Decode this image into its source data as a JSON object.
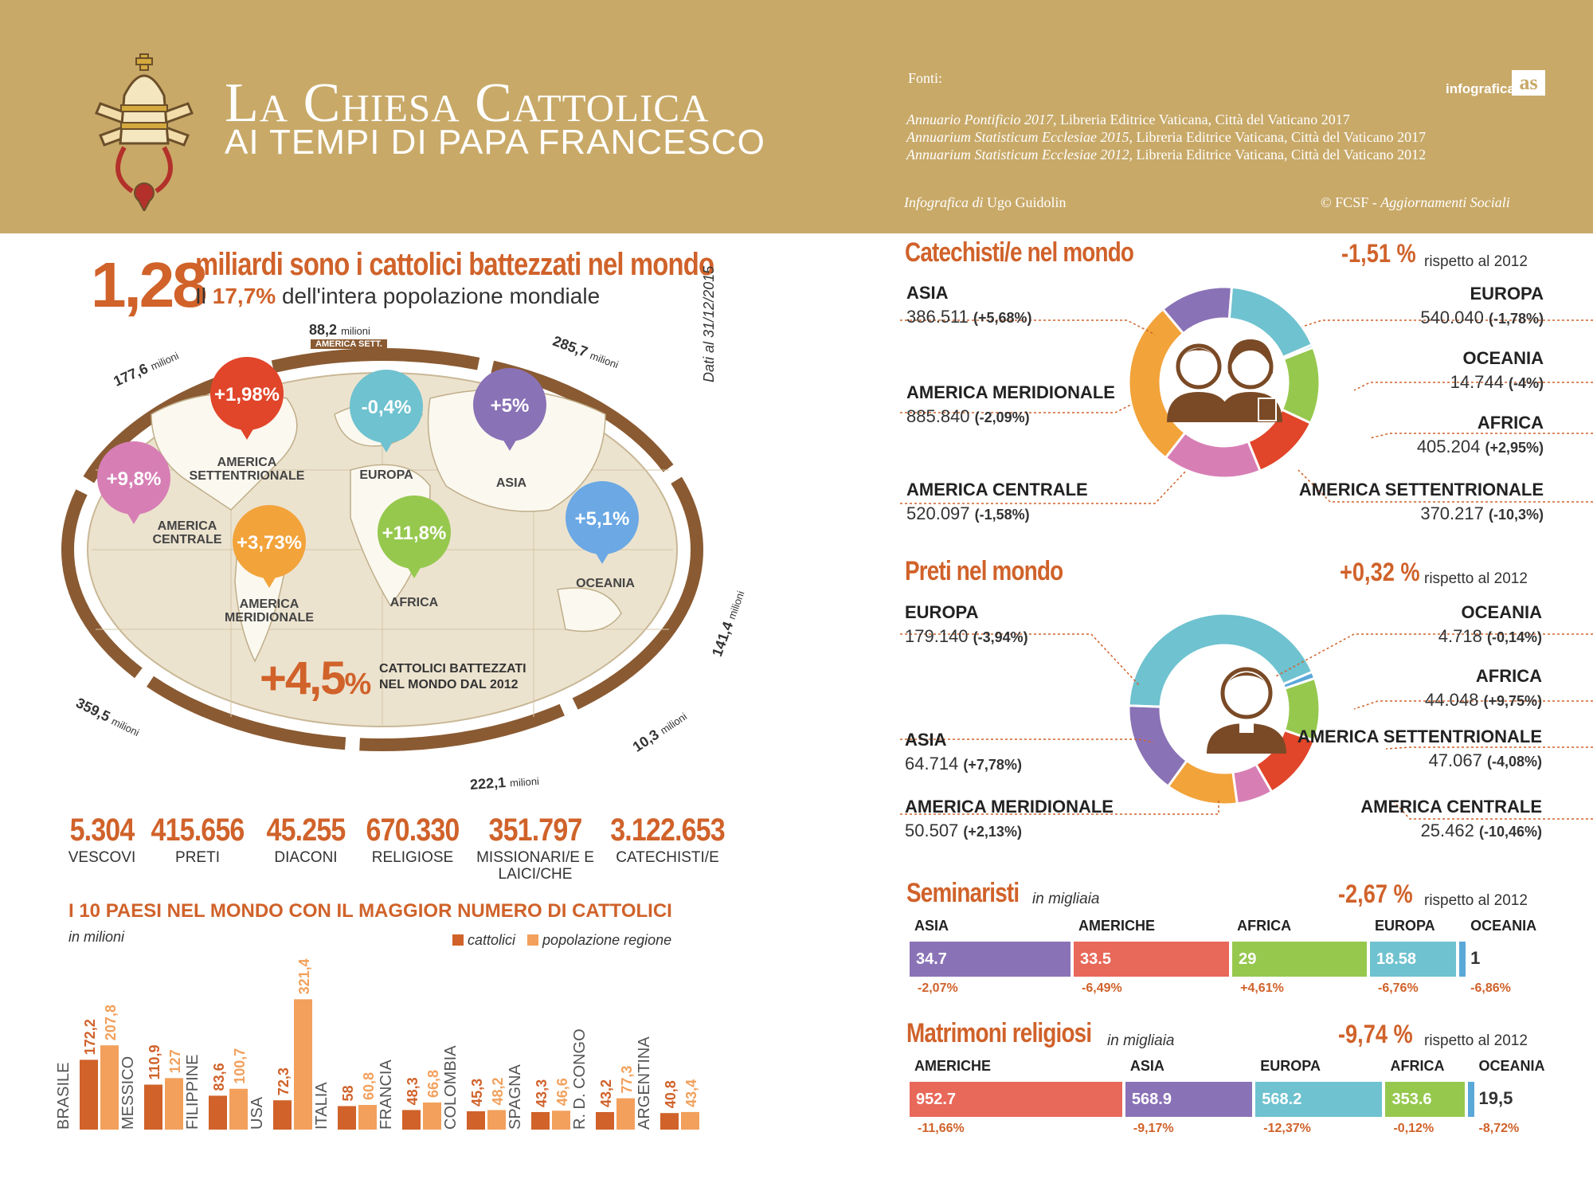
{
  "header": {
    "title_line1": "La Chiesa Cattolica",
    "title_line2": "AI TEMPI DI PAPA FRANCESCO",
    "fonti_label": "Fonti:",
    "sources": [
      {
        "title": "Annuario Pontificio 2017",
        "rest": ", Libreria Editrice Vaticana, Città del Vaticano 2017"
      },
      {
        "title": "Annuarium Statisticum Ecclesiae 2015",
        "rest": ", Libreria Editrice Vaticana, Città del Vaticano 2017"
      },
      {
        "title": "Annuarium Statisticum Ecclesiae 2012",
        "rest": ", Libreria Editrice Vaticana, Città del Vaticano 2012"
      }
    ],
    "infografica_di": "Infografica di",
    "author": "Ugo Guidolin",
    "copyright_prefix": "© FCSF - ",
    "copyright_pub": "Aggiornamenti Sociali",
    "brand_text": "infografica",
    "brand_logo": "as"
  },
  "intro": {
    "big_number": "1,28",
    "line1": "miliardi sono i cattolici battezzati nel mondo",
    "line2_prefix": "Il",
    "line2_pct": "17,7%",
    "line2_suffix": "dell'intera popolazione mondiale",
    "date_note": "Dati al 31/12/2015"
  },
  "map": {
    "ring_unit": "milioni",
    "ring_labels": [
      {
        "region": "AMERICA SETT.",
        "value": "88,2"
      },
      {
        "region": "AMERICA CENTRALE",
        "value": "177,6"
      },
      {
        "region": "EUROPA",
        "value": "285,7"
      },
      {
        "region": "ASIA",
        "value": "141,4"
      },
      {
        "region": "OCEANIA",
        "value": "10,3"
      },
      {
        "region": "AFRICA",
        "value": "222,1"
      },
      {
        "region": "AMERICA MERIDIONALE",
        "value": "359,5"
      }
    ],
    "bubbles": [
      {
        "pct": "+1,98%",
        "label": "AMERICA SETTENTRIONALE",
        "color": "#e1452a"
      },
      {
        "pct": "-0,4%",
        "label": "EUROPA",
        "color": "#6fc2cf"
      },
      {
        "pct": "+5%",
        "label": "ASIA",
        "color": "#8a72b6"
      },
      {
        "pct": "+9,8%",
        "label": "AMERICA CENTRALE",
        "color": "#d77fb5"
      },
      {
        "pct": "+3,73%",
        "label": "AMERICA MERIDIONALE",
        "color": "#f2a33a"
      },
      {
        "pct": "+11,8%",
        "label": "AFRICA",
        "color": "#96c84e"
      },
      {
        "pct": "+5,1%",
        "label": "OCEANIA",
        "color": "#6ba8e4"
      }
    ],
    "growth_pct": "+4,5",
    "growth_sign": "%",
    "growth_label": "CATTOLICI BATTEZZATI NEL MONDO DAL 2012"
  },
  "stats": [
    {
      "value": "5.304",
      "label": "VESCOVI"
    },
    {
      "value": "415.656",
      "label": "PRETI"
    },
    {
      "value": "45.255",
      "label": "DIACONI"
    },
    {
      "value": "670.330",
      "label": "RELIGIOSE"
    },
    {
      "value": "351.797",
      "label": "MISSIONARI/E E LAICI/CHE"
    },
    {
      "value": "3.122.653",
      "label": "CATECHISTI/E"
    }
  ],
  "top10": {
    "title": "I 10 PAESI NEL MONDO CON IL MAGGIOR NUMERO DI CATTOLICI",
    "unit": "in milioni",
    "legend_cattolici": "cattolici",
    "legend_popolazione": "popolazione regione"
  },
  "catechisti": {
    "title": "Catechisti/e nel mondo",
    "pct": "-1,51 %",
    "rispetto": "rispetto al 2012"
  },
  "preti": {
    "title": "Preti nel mondo",
    "pct": "+0,32 %",
    "rispetto": "rispetto al 2012"
  },
  "seminaristi": {
    "title": "Seminaristi",
    "unit": "in migliaia",
    "pct": "-2,67 %",
    "rispetto": "rispetto al 2012"
  },
  "matrimoni": {
    "title": "Matrimoni religiosi",
    "unit": "in migliaia",
    "pct": "-9,74 %",
    "rispetto": "rispetto al 2012"
  },
  "chart_data": [
    {
      "type": "bar",
      "title": "I 10 PAESI NEL MONDO CON IL MAGGIOR NUMERO DI CATTOLICI",
      "ylabel": "in milioni",
      "categories": [
        "BRASILE",
        "MESSICO",
        "FILIPPINE",
        "USA",
        "ITALIA",
        "FRANCIA",
        "COLOMBIA",
        "SPAGNA",
        "R. D. CONGO",
        "ARGENTINA"
      ],
      "series": [
        {
          "name": "cattolici",
          "values": [
            172.2,
            110.9,
            83.6,
            72.3,
            58,
            48.3,
            45.3,
            43.3,
            43.2,
            40.8
          ],
          "labels": [
            "172,2",
            "110,9",
            "83,6",
            "72,3",
            "58",
            "48,3",
            "45,3",
            "43,3",
            "43,2",
            "40,8"
          ],
          "color": "#d0622a"
        },
        {
          "name": "popolazione regione",
          "values": [
            207.8,
            127,
            100.7,
            321.4,
            60.8,
            66.8,
            48.2,
            46.6,
            77.3,
            43.4
          ],
          "labels": [
            "207,8",
            "127",
            "100,7",
            "321,4",
            "60,8",
            "66,8",
            "48,2",
            "46,6",
            "77,3",
            "43,4"
          ],
          "color": "#f2a05c"
        }
      ],
      "ylim": [
        0,
        330
      ]
    },
    {
      "type": "pie",
      "title": "Catechisti/e nel mondo",
      "slices": [
        {
          "name": "ASIA",
          "value": 386511,
          "label": "386.511",
          "change": "(+5,68%)",
          "color": "#8a72b6"
        },
        {
          "name": "EUROPA",
          "value": 540040,
          "label": "540.040",
          "change": "(-1,78%)",
          "color": "#6fc2cf"
        },
        {
          "name": "OCEANIA",
          "value": 14744,
          "label": "14.744",
          "change": "(-4%)",
          "color": "#5aa8d8"
        },
        {
          "name": "AFRICA",
          "value": 405204,
          "label": "405.204",
          "change": "(+2,95%)",
          "color": "#96c84e"
        },
        {
          "name": "AMERICA SETTENTRIONALE",
          "value": 370217,
          "label": "370.217",
          "change": "(-10,3%)",
          "color": "#e1452a"
        },
        {
          "name": "AMERICA CENTRALE",
          "value": 520097,
          "label": "520.097",
          "change": "(-1,58%)",
          "color": "#d77fb5"
        },
        {
          "name": "AMERICA MERIDIONALE",
          "value": 885840,
          "label": "885.840",
          "change": "(-2,09%)",
          "color": "#f2a33a"
        }
      ]
    },
    {
      "type": "pie",
      "title": "Preti nel mondo",
      "slices": [
        {
          "name": "EUROPA",
          "value": 179140,
          "label": "179.140",
          "change": "(-3,94%)",
          "color": "#6fc2cf"
        },
        {
          "name": "OCEANIA",
          "value": 4718,
          "label": "4.718",
          "change": "(-0,14%)",
          "color": "#5aa8d8"
        },
        {
          "name": "AFRICA",
          "value": 44048,
          "label": "44.048",
          "change": "(+9,75%)",
          "color": "#96c84e"
        },
        {
          "name": "AMERICA SETTENTRIONALE",
          "value": 47067,
          "label": "47.067",
          "change": "(-4,08%)",
          "color": "#e1452a"
        },
        {
          "name": "AMERICA CENTRALE",
          "value": 25462,
          "label": "25.462",
          "change": "(-10,46%)",
          "color": "#d77fb5"
        },
        {
          "name": "AMERICA MERIDIONALE",
          "value": 50507,
          "label": "50.507",
          "change": "(+2,13%)",
          "color": "#f2a33a"
        },
        {
          "name": "ASIA",
          "value": 64714,
          "label": "64.714",
          "change": "(+7,78%)",
          "color": "#8a72b6"
        }
      ]
    },
    {
      "type": "bar",
      "title": "Seminaristi",
      "ylabel": "in migliaia",
      "stacked": true,
      "segments": [
        {
          "name": "ASIA",
          "value": 34.7,
          "label": "34.7",
          "change": "-2,07%",
          "color": "#8a72b6"
        },
        {
          "name": "AMERICHE",
          "value": 33.5,
          "label": "33.5",
          "change": "-6,49%",
          "color": "#e8685a"
        },
        {
          "name": "AFRICA",
          "value": 29,
          "label": "29",
          "change": "+4,61%",
          "color": "#96c84e"
        },
        {
          "name": "EUROPA",
          "value": 18.58,
          "label": "18.58",
          "change": "-6,76%",
          "color": "#6fc2cf"
        },
        {
          "name": "OCEANIA",
          "value": 1,
          "label": "1",
          "change": "-6,86%",
          "color": "#5aa8d8"
        }
      ]
    },
    {
      "type": "bar",
      "title": "Matrimoni religiosi",
      "ylabel": "in migliaia",
      "stacked": true,
      "segments": [
        {
          "name": "AMERICHE",
          "value": 952.7,
          "label": "952.7",
          "change": "-11,66%",
          "color": "#e8685a"
        },
        {
          "name": "ASIA",
          "value": 568.9,
          "label": "568.9",
          "change": "-9,17%",
          "color": "#8a72b6"
        },
        {
          "name": "EUROPA",
          "value": 568.2,
          "label": "568.2",
          "change": "-12,37%",
          "color": "#6fc2cf"
        },
        {
          "name": "AFRICA",
          "value": 353.6,
          "label": "353.6",
          "change": "-0,12%",
          "color": "#96c84e"
        },
        {
          "name": "OCEANIA",
          "value": 19.5,
          "label": "19,5",
          "change": "-8,72%",
          "color": "#5aa8d8"
        }
      ]
    }
  ]
}
